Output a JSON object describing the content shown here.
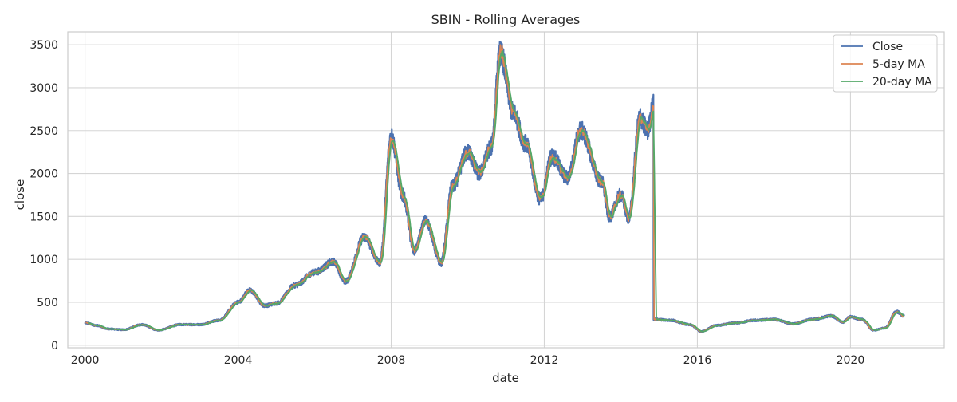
{
  "chart_data": {
    "type": "line",
    "title": "SBIN - Rolling Averages",
    "xlabel": "date",
    "ylabel": "close",
    "xlim": [
      1999.55,
      2022.45
    ],
    "ylim": [
      -30,
      3650
    ],
    "x_ticks": [
      2000,
      2004,
      2008,
      2012,
      2016,
      2020
    ],
    "x_tick_labels": [
      "2000",
      "2004",
      "2008",
      "2012",
      "2016",
      "2020"
    ],
    "y_ticks": [
      0,
      500,
      1000,
      1500,
      2000,
      2500,
      3000,
      3500
    ],
    "y_tick_labels": [
      "0",
      "500",
      "1000",
      "1500",
      "2000",
      "2500",
      "3000",
      "3500"
    ],
    "grid": true,
    "legend_position": "upper right",
    "series_names": [
      "Close",
      "5-day MA",
      "20-day MA"
    ],
    "series_colors": [
      "#4c72b0",
      "#dd8452",
      "#55a868"
    ],
    "keypoints": [
      [
        2000.0,
        260
      ],
      [
        2000.3,
        230
      ],
      [
        2000.6,
        190
      ],
      [
        2001.0,
        180
      ],
      [
        2001.5,
        240
      ],
      [
        2001.9,
        175
      ],
      [
        2002.5,
        240
      ],
      [
        2003.0,
        240
      ],
      [
        2003.5,
        290
      ],
      [
        2004.0,
        500
      ],
      [
        2004.3,
        640
      ],
      [
        2004.7,
        460
      ],
      [
        2005.0,
        490
      ],
      [
        2005.5,
        700
      ],
      [
        2006.0,
        850
      ],
      [
        2006.5,
        970
      ],
      [
        2006.8,
        740
      ],
      [
        2007.3,
        1260
      ],
      [
        2007.7,
        960
      ],
      [
        2008.0,
        2430
      ],
      [
        2008.3,
        1750
      ],
      [
        2008.6,
        1100
      ],
      [
        2008.9,
        1450
      ],
      [
        2009.3,
        960
      ],
      [
        2009.6,
        1850
      ],
      [
        2010.0,
        2250
      ],
      [
        2010.3,
        2000
      ],
      [
        2010.6,
        2300
      ],
      [
        2010.85,
        3400
      ],
      [
        2011.2,
        2700
      ],
      [
        2011.5,
        2350
      ],
      [
        2011.9,
        1700
      ],
      [
        2012.2,
        2200
      ],
      [
        2012.6,
        1950
      ],
      [
        2012.95,
        2500
      ],
      [
        2013.5,
        1900
      ],
      [
        2013.7,
        1500
      ],
      [
        2014.0,
        1750
      ],
      [
        2014.2,
        1480
      ],
      [
        2014.5,
        2650
      ],
      [
        2014.7,
        2500
      ],
      [
        2014.85,
        2800
      ],
      [
        2014.9,
        300
      ],
      [
        2015.3,
        290
      ],
      [
        2015.8,
        240
      ],
      [
        2016.1,
        160
      ],
      [
        2016.5,
        230
      ],
      [
        2017.0,
        260
      ],
      [
        2017.5,
        290
      ],
      [
        2018.0,
        300
      ],
      [
        2018.5,
        250
      ],
      [
        2019.0,
        300
      ],
      [
        2019.5,
        340
      ],
      [
        2019.8,
        270
      ],
      [
        2020.0,
        330
      ],
      [
        2020.3,
        300
      ],
      [
        2020.6,
        175
      ],
      [
        2020.9,
        200
      ],
      [
        2021.2,
        390
      ],
      [
        2021.4,
        340
      ]
    ]
  }
}
